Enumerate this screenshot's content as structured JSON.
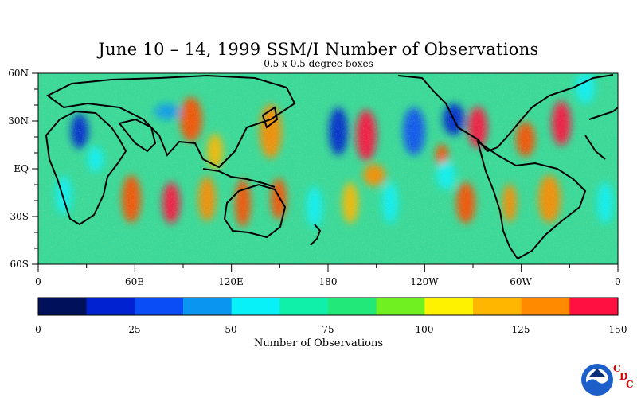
{
  "title": "June 10 – 14, 1999 SSM/I Number of Observations",
  "subtitle": "0.5 x 0.5 degree boxes",
  "map": {
    "lat_labels": [
      "60N",
      "30N",
      "EQ",
      "30S",
      "60S"
    ],
    "lon_labels": [
      "0",
      "60E",
      "120E",
      "180",
      "120W",
      "60W",
      "0"
    ],
    "background_color": "#3ad89a"
  },
  "colorbar": {
    "title": "Number of Observations",
    "tick_labels": [
      "0",
      "25",
      "50",
      "75",
      "100",
      "125",
      "150"
    ],
    "colors": [
      "#00105a",
      "#0022d0",
      "#0a4cf5",
      "#0a96f0",
      "#08f0f8",
      "#10f0a8",
      "#22e87a",
      "#70f020",
      "#fff200",
      "#ffb600",
      "#ff8a00",
      "#ff4a00",
      "#ff1040"
    ]
  },
  "logo": {
    "name": "NOAA",
    "letters": [
      "C",
      "D",
      "C"
    ]
  }
}
